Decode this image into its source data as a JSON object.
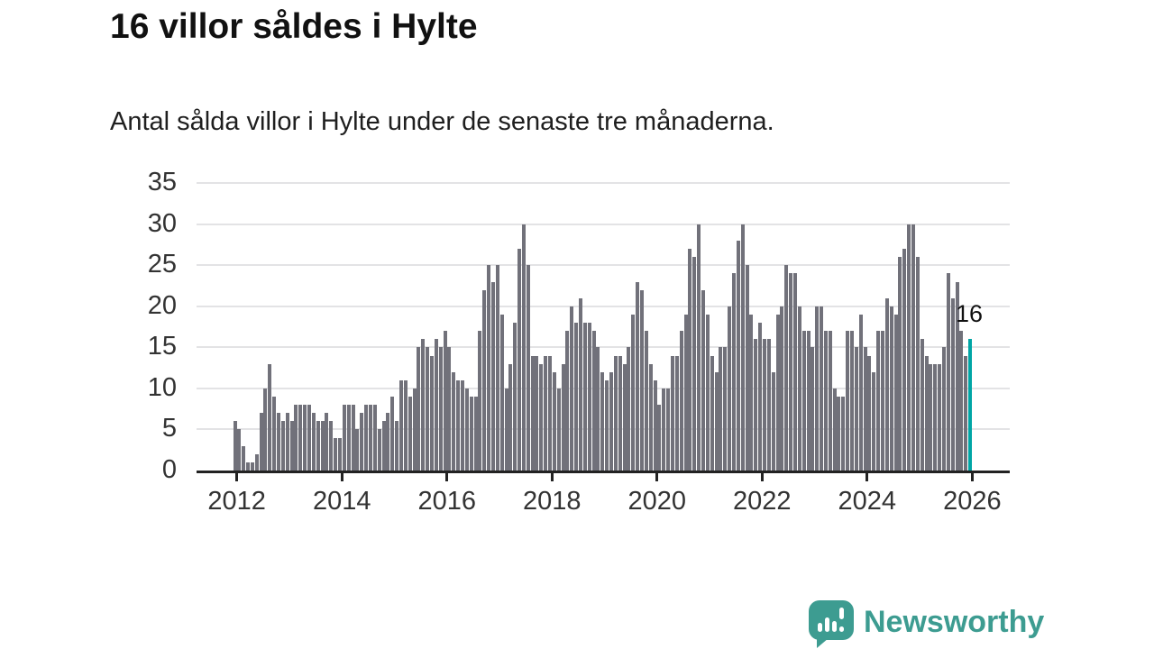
{
  "header": {
    "title": "16 villor såldes i Hylte",
    "subtitle": "Antal sålda villor i Hylte under de senaste tre månaderna."
  },
  "chart_data": {
    "type": "bar",
    "title": "16 villor såldes i Hylte",
    "subtitle": "Antal sålda villor i Hylte under de senaste tre månaderna.",
    "frequency": "monthly",
    "x_start": "2012-01",
    "x_end": "2026-01",
    "ylim": [
      0,
      35
    ],
    "yticks": [
      0,
      5,
      10,
      15,
      20,
      25,
      30,
      35
    ],
    "xtick_years": [
      2012,
      2014,
      2016,
      2018,
      2020,
      2022,
      2024,
      2026
    ],
    "grid": true,
    "legend": false,
    "annotation": "16",
    "last_value": 16,
    "values": [
      6,
      5,
      3,
      1,
      1,
      2,
      7,
      10,
      13,
      9,
      7,
      6,
      7,
      6,
      8,
      8,
      8,
      8,
      7,
      6,
      6,
      7,
      6,
      4,
      4,
      8,
      8,
      8,
      5,
      7,
      8,
      8,
      8,
      5,
      6,
      7,
      9,
      6,
      11,
      11,
      9,
      10,
      15,
      16,
      15,
      14,
      16,
      15,
      17,
      15,
      12,
      11,
      11,
      10,
      9,
      9,
      17,
      22,
      25,
      23,
      25,
      19,
      10,
      13,
      18,
      27,
      30,
      25,
      14,
      14,
      13,
      14,
      14,
      12,
      10,
      13,
      17,
      20,
      18,
      21,
      18,
      18,
      17,
      15,
      12,
      11,
      12,
      14,
      14,
      13,
      15,
      19,
      23,
      22,
      17,
      13,
      11,
      8,
      10,
      10,
      14,
      14,
      17,
      19,
      27,
      26,
      30,
      22,
      19,
      14,
      12,
      15,
      15,
      20,
      24,
      28,
      30,
      25,
      19,
      16,
      18,
      16,
      16,
      12,
      19,
      20,
      25,
      24,
      24,
      20,
      17,
      17,
      15,
      20,
      20,
      17,
      17,
      10,
      9,
      9,
      17,
      17,
      15,
      19,
      15,
      14,
      12,
      17,
      17,
      21,
      20,
      19,
      26,
      27,
      30,
      30,
      26,
      16,
      14,
      13,
      13,
      13,
      15,
      24,
      21,
      23,
      17,
      14,
      16
    ],
    "colors": {
      "bar": "#71717a",
      "highlight": "#00a5a5",
      "grid": "#e3e3e5",
      "axis": "#222222",
      "tick_text": "#333333"
    }
  },
  "footer": {
    "brand": "Newsworthy",
    "brand_color": "#3d9c91"
  }
}
